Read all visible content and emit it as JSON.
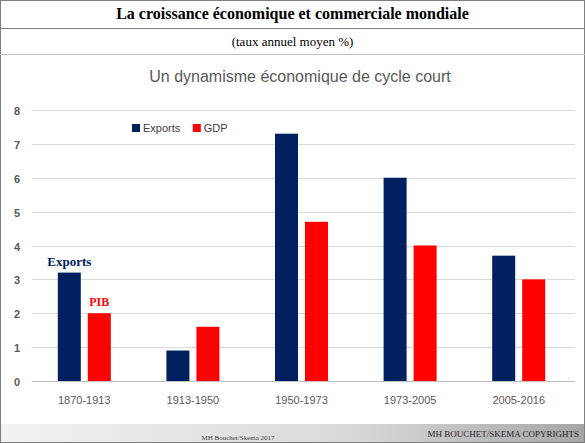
{
  "header": {
    "title": "La croissance économique et commerciale mondiale",
    "subtitle": "(taux annuel moyen %)"
  },
  "chart_data": {
    "type": "bar",
    "title": "Un dynamisme économique de cycle court",
    "categories": [
      "1870-1913",
      "1913-1950",
      "1950-1973",
      "1973-2005",
      "2005-2016"
    ],
    "series": [
      {
        "name": "Exports",
        "color": "#002060",
        "values": [
          3.2,
          0.9,
          7.3,
          6.0,
          3.7
        ]
      },
      {
        "name": "GDP",
        "color": "#ff0000",
        "values": [
          2.0,
          1.6,
          4.7,
          4.0,
          3.0
        ]
      }
    ],
    "annotations": [
      "Exports",
      "PIB"
    ],
    "ylim": [
      0,
      8
    ],
    "yticks": [
      0,
      1,
      2,
      3,
      4,
      5,
      6,
      7,
      8
    ],
    "grid": true,
    "legend": "top-left"
  },
  "footer": {
    "left": "MH Bouchet/Skema 2017",
    "right": "MH BOUCHET/SKEMA COPYRIGHTS"
  }
}
